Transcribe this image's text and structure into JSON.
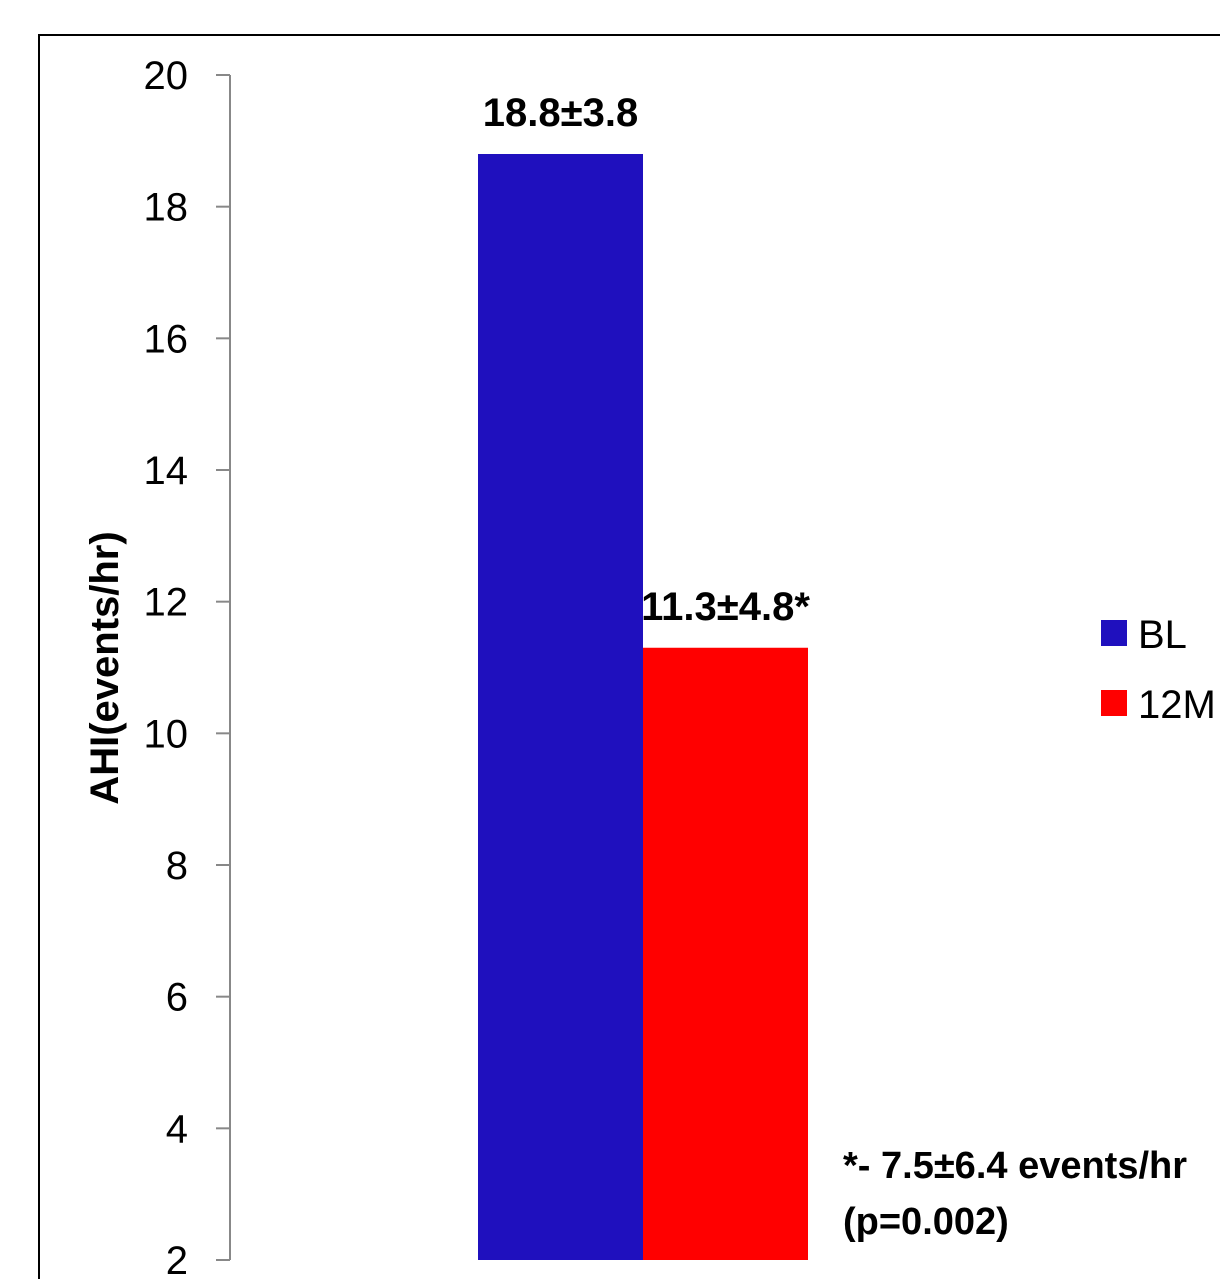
{
  "chart_data": {
    "type": "bar",
    "categories": [
      ""
    ],
    "series": [
      {
        "name": "BL",
        "values": [
          18.8
        ],
        "label": "18.8±3.8",
        "color": "#1f10be"
      },
      {
        "name": "12M",
        "values": [
          11.3
        ],
        "label": "11.3±4.8*",
        "color": "#ff0000"
      }
    ],
    "title": "",
    "xlabel": "",
    "ylabel": "AHI(events/hr)",
    "ylim": [
      2,
      20
    ],
    "yticks": [
      2,
      4,
      6,
      8,
      10,
      12,
      14,
      16,
      18,
      20
    ],
    "grid": false,
    "legend": "right",
    "annotation": [
      "*- 7.5±6.4 events/hr",
      "(p=0.002)"
    ]
  }
}
